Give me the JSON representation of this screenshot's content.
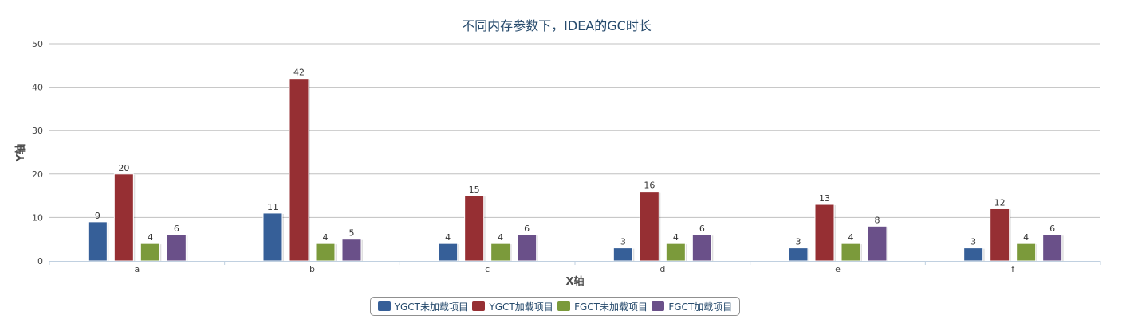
{
  "chart_data": {
    "type": "bar",
    "title": "不同内存参数下，IDEA的GC时长",
    "xlabel": "X轴",
    "ylabel": "Y轴",
    "ylim": [
      0,
      50
    ],
    "yticks": [
      0,
      10,
      20,
      30,
      40,
      50
    ],
    "categories": [
      "a",
      "b",
      "c",
      "d",
      "e",
      "f"
    ],
    "series": [
      {
        "name": "YGCT未加载项目",
        "color": "#365f98",
        "values": [
          9,
          11,
          4,
          3,
          3,
          3
        ]
      },
      {
        "name": "YGCT加载项目",
        "color": "#962f33",
        "values": [
          20,
          42,
          15,
          16,
          13,
          12
        ]
      },
      {
        "name": "FGCT未加载项目",
        "color": "#7b9a3b",
        "values": [
          4,
          4,
          4,
          4,
          4,
          4
        ]
      },
      {
        "name": "FGCT加载项目",
        "color": "#6a5089",
        "values": [
          6,
          5,
          6,
          6,
          8,
          6
        ]
      }
    ],
    "grid": true,
    "legend_position": "bottom-center"
  }
}
